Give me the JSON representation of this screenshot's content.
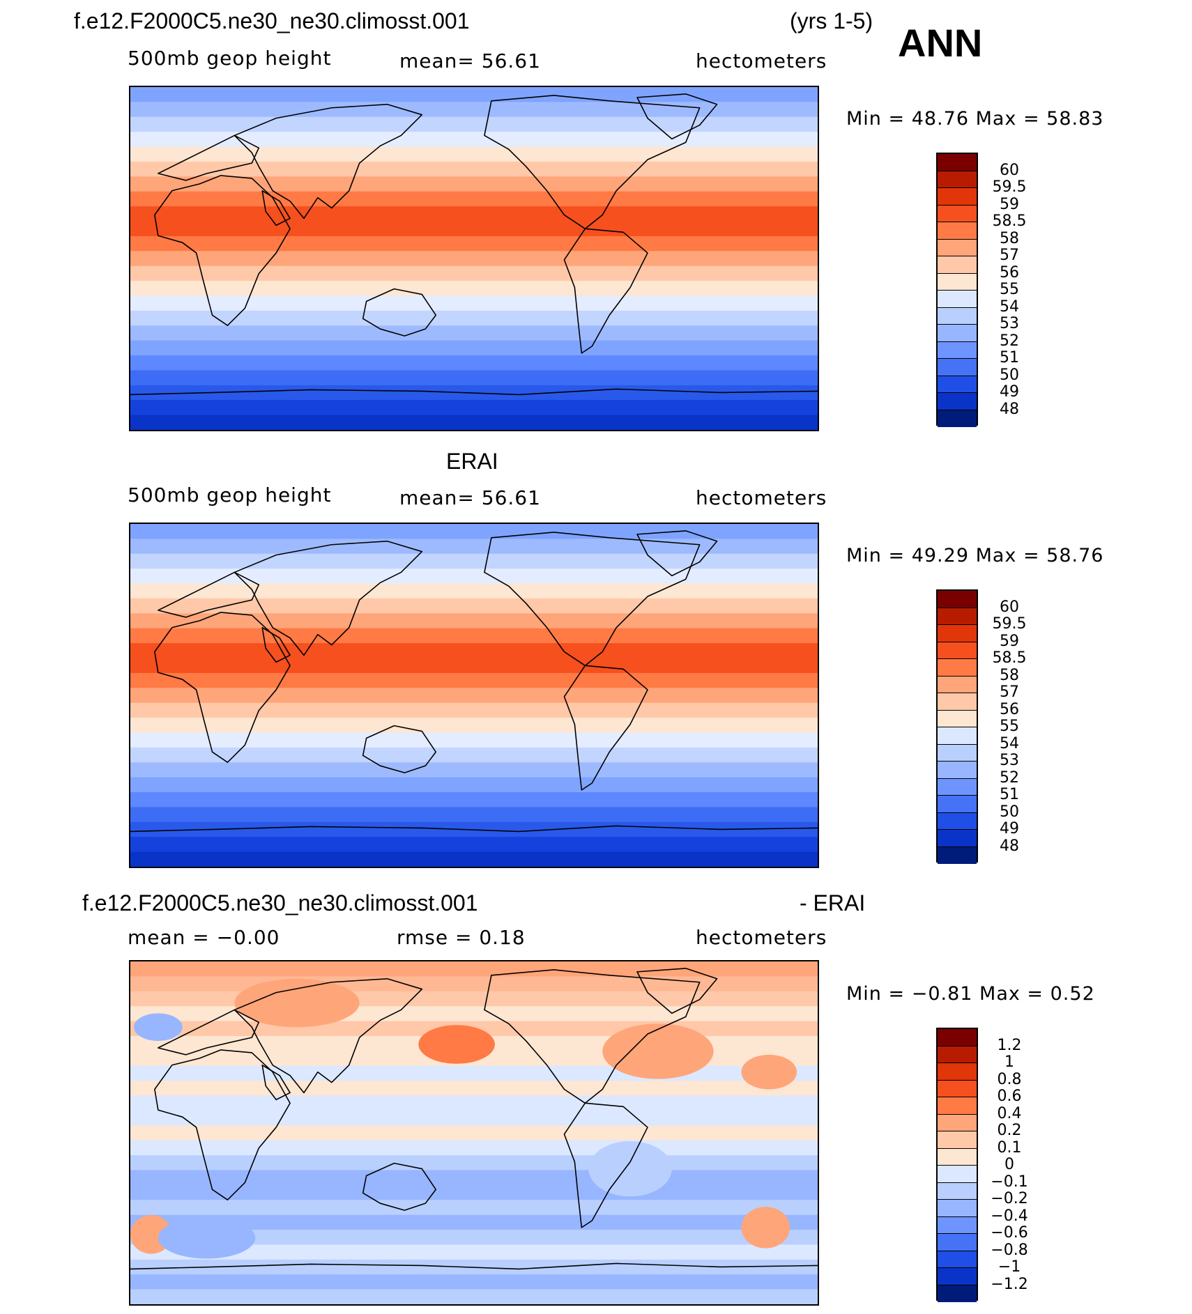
{
  "header": {
    "case_name": "f.e12.F2000C5.ne30_ne30.climosst.001",
    "years": "(yrs 1-5)",
    "season": "ANN"
  },
  "panels": [
    {
      "id": "model",
      "title": "",
      "variable": "500mb geop height",
      "stat_text": "mean=   56.61",
      "units": "hectometers",
      "minmax_text": "Min =   48.76  Max =   58.83",
      "colorbar_labels": [
        "60",
        "59.5",
        "59",
        "58.5",
        "58",
        "57",
        "56",
        "55",
        "54",
        "53",
        "52",
        "51",
        "50",
        "49",
        "48"
      ],
      "colors": [
        "#7a0000",
        "#b81c00",
        "#e0360a",
        "#f5501e",
        "#ff7a45",
        "#ffa57a",
        "#ffc8a8",
        "#fde6d2",
        "#dbe8ff",
        "#b9d0ff",
        "#97b6ff",
        "#6e95ff",
        "#4673f5",
        "#1f4fe6",
        "#0a33c8",
        "#001c7a"
      ],
      "band_colors": [
        "#7fa4ff",
        "#9ebaff",
        "#c2d5ff",
        "#e4ecff",
        "#fde6d2",
        "#ffc8a8",
        "#ffa57a",
        "#ff7a45",
        "#f5501e",
        "#f5501e",
        "#ff7a45",
        "#ffa57a",
        "#ffc8a8",
        "#fde6d2",
        "#e4ecff",
        "#c2d5ff",
        "#9ebaff",
        "#7fa4ff",
        "#5d88ff",
        "#3e6df5",
        "#2859ea",
        "#1542dc",
        "#0a33c8"
      ]
    },
    {
      "id": "obs",
      "title": "ERAI",
      "variable": "500mb geop height",
      "stat_text": "mean=   56.61",
      "units": "hectometers",
      "minmax_text": "Min =   49.29  Max =   58.76",
      "colorbar_labels": [
        "60",
        "59.5",
        "59",
        "58.5",
        "58",
        "57",
        "56",
        "55",
        "54",
        "53",
        "52",
        "51",
        "50",
        "49",
        "48"
      ],
      "colors": [
        "#7a0000",
        "#b81c00",
        "#e0360a",
        "#f5501e",
        "#ff7a45",
        "#ffa57a",
        "#ffc8a8",
        "#fde6d2",
        "#dbe8ff",
        "#b9d0ff",
        "#97b6ff",
        "#6e95ff",
        "#4673f5",
        "#1f4fe6",
        "#0a33c8",
        "#001c7a"
      ],
      "band_colors": [
        "#7fa4ff",
        "#9ebaff",
        "#c2d5ff",
        "#e4ecff",
        "#fde6d2",
        "#ffc8a8",
        "#ffa57a",
        "#ff7a45",
        "#f5501e",
        "#f5501e",
        "#ff7a45",
        "#ffa57a",
        "#ffc8a8",
        "#fde6d2",
        "#e4ecff",
        "#c2d5ff",
        "#9ebaff",
        "#7fa4ff",
        "#5d88ff",
        "#3e6df5",
        "#2859ea",
        "#1542dc",
        "#0a33c8"
      ]
    },
    {
      "id": "diff",
      "title_left": "f.e12.F2000C5.ne30_ne30.climosst.001",
      "title_right": "- ERAI",
      "variable_stat": "mean =   −0.00",
      "stat_text": "rmse =    0.18",
      "units": "hectometers",
      "minmax_text": "Min =   −0.81  Max =    0.52",
      "colorbar_labels": [
        "1.2",
        "1",
        "0.8",
        "0.6",
        "0.4",
        "0.2",
        "0.1",
        "0",
        "−0.1",
        "−0.2",
        "−0.4",
        "−0.6",
        "−0.8",
        "−1",
        "−1.2"
      ],
      "colors": [
        "#7a0000",
        "#b81c00",
        "#e0360a",
        "#f5501e",
        "#ff7a45",
        "#ffa57a",
        "#ffc8a8",
        "#fde6d2",
        "#dbe8ff",
        "#b9d0ff",
        "#97b6ff",
        "#6e95ff",
        "#4673f5",
        "#1f4fe6",
        "#0a33c8",
        "#001c7a"
      ],
      "band_colors": [
        "#ffa57a",
        "#ffb894",
        "#ffc8a8",
        "#fde6d2",
        "#ffc8a8",
        "#fde6d2",
        "#fde6d2",
        "#dbe8ff",
        "#fde6d2",
        "#dbe8ff",
        "#dbe8ff",
        "#fde6d2",
        "#dbe8ff",
        "#b9d0ff",
        "#97b6ff",
        "#97b6ff",
        "#b9d0ff",
        "#97b6ff",
        "#b9d0ff",
        "#dbe8ff",
        "#b9d0ff",
        "#97b6ff",
        "#b9d0ff"
      ]
    }
  ]
}
